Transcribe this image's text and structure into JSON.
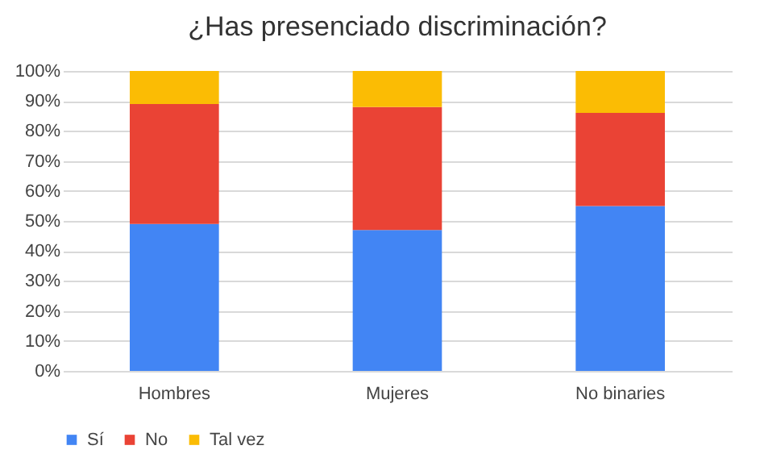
{
  "chart_data": {
    "type": "bar",
    "title": "¿Has presenciado discriminación?",
    "categories": [
      "Hombres",
      "Mujeres",
      "No binaries"
    ],
    "stacked": true,
    "series": [
      {
        "name": "Sí",
        "color": "#4285f4",
        "values": [
          49,
          47,
          55
        ]
      },
      {
        "name": "No",
        "color": "#ea4335",
        "values": [
          40,
          41,
          31
        ]
      },
      {
        "name": "Tal vez",
        "color": "#fbbc04",
        "values": [
          11,
          12,
          14
        ]
      }
    ],
    "ylim": [
      0,
      100
    ],
    "yticks": [
      {
        "value": 0,
        "label": "0%"
      },
      {
        "value": 10,
        "label": "10%"
      },
      {
        "value": 20,
        "label": "20%"
      },
      {
        "value": 30,
        "label": "30%"
      },
      {
        "value": 40,
        "label": "40%"
      },
      {
        "value": 50,
        "label": "50%"
      },
      {
        "value": 60,
        "label": "60%"
      },
      {
        "value": 70,
        "label": "70%"
      },
      {
        "value": 80,
        "label": "80%"
      },
      {
        "value": 90,
        "label": "90%"
      },
      {
        "value": 100,
        "label": "100%"
      }
    ],
    "grid": "y",
    "legend": "bottom"
  }
}
